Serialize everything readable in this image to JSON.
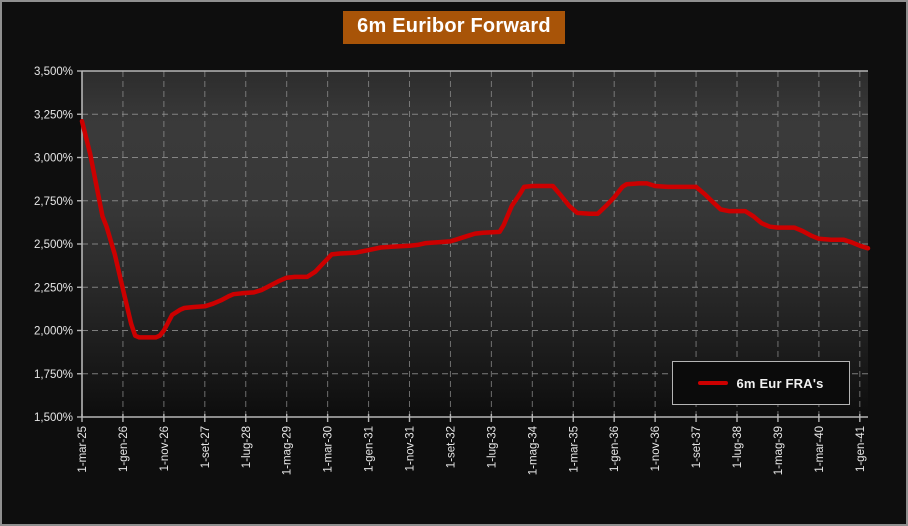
{
  "title": {
    "text": "6m Euribor Forward"
  },
  "legend": {
    "label": "6m Eur FRA's"
  },
  "colors": {
    "series": "#cc0000",
    "title_bg": "#a85408",
    "page_bg": "#0e0e0e",
    "grid": "#9d9d9d",
    "axis": "#b5b5b5",
    "tick_text": "#e6e6e6"
  },
  "chart_data": {
    "type": "line",
    "title": "6m Euribor Forward",
    "xlabel": "",
    "ylabel": "",
    "grid": true,
    "legend_position": "bottom-right",
    "x_unit": "months-from-first-tick",
    "xlim": [
      0,
      192
    ],
    "ylim": [
      1.5,
      3.5
    ],
    "y_ticks": [
      {
        "value": 3.5,
        "label": "3,500%"
      },
      {
        "value": 3.25,
        "label": "3,250%"
      },
      {
        "value": 3.0,
        "label": "3,000%"
      },
      {
        "value": 2.75,
        "label": "2,750%"
      },
      {
        "value": 2.5,
        "label": "2,500%"
      },
      {
        "value": 2.25,
        "label": "2,250%"
      },
      {
        "value": 2.0,
        "label": "2,000%"
      },
      {
        "value": 1.75,
        "label": "1,750%"
      },
      {
        "value": 1.5,
        "label": "1,500%"
      }
    ],
    "x_ticks": [
      {
        "month": 0,
        "label": "1-mar-25"
      },
      {
        "month": 10,
        "label": "1-gen-26"
      },
      {
        "month": 20,
        "label": "1-nov-26"
      },
      {
        "month": 30,
        "label": "1-set-27"
      },
      {
        "month": 40,
        "label": "1-lug-28"
      },
      {
        "month": 50,
        "label": "1-mag-29"
      },
      {
        "month": 60,
        "label": "1-mar-30"
      },
      {
        "month": 70,
        "label": "1-gen-31"
      },
      {
        "month": 80,
        "label": "1-nov-31"
      },
      {
        "month": 90,
        "label": "1-set-32"
      },
      {
        "month": 100,
        "label": "1-lug-33"
      },
      {
        "month": 110,
        "label": "1-mag-34"
      },
      {
        "month": 120,
        "label": "1-mar-35"
      },
      {
        "month": 130,
        "label": "1-gen-36"
      },
      {
        "month": 140,
        "label": "1-nov-36"
      },
      {
        "month": 150,
        "label": "1-set-37"
      },
      {
        "month": 160,
        "label": "1-lug-38"
      },
      {
        "month": 170,
        "label": "1-mag-39"
      },
      {
        "month": 180,
        "label": "1-mar-40"
      },
      {
        "month": 190,
        "label": "1-gen-41"
      }
    ],
    "series": [
      {
        "name": "6m Eur FRA's",
        "color": "#cc0000",
        "points": [
          [
            0,
            3.21
          ],
          [
            2,
            3.02
          ],
          [
            4,
            2.78
          ],
          [
            5,
            2.66
          ],
          [
            6,
            2.6
          ],
          [
            8,
            2.44
          ],
          [
            10,
            2.24
          ],
          [
            12,
            2.04
          ],
          [
            13,
            1.97
          ],
          [
            14,
            1.96
          ],
          [
            16,
            1.96
          ],
          [
            18,
            1.96
          ],
          [
            19,
            1.97
          ],
          [
            20,
            2.0
          ],
          [
            22,
            2.09
          ],
          [
            24,
            2.12
          ],
          [
            25,
            2.13
          ],
          [
            27,
            2.135
          ],
          [
            30,
            2.14
          ],
          [
            32,
            2.155
          ],
          [
            34,
            2.175
          ],
          [
            36,
            2.2
          ],
          [
            37,
            2.21
          ],
          [
            39,
            2.215
          ],
          [
            42,
            2.22
          ],
          [
            44,
            2.235
          ],
          [
            46,
            2.26
          ],
          [
            48,
            2.285
          ],
          [
            50,
            2.305
          ],
          [
            52,
            2.31
          ],
          [
            55,
            2.31
          ],
          [
            57,
            2.34
          ],
          [
            59,
            2.39
          ],
          [
            61,
            2.44
          ],
          [
            63,
            2.445
          ],
          [
            67,
            2.45
          ],
          [
            70,
            2.465
          ],
          [
            73,
            2.48
          ],
          [
            76,
            2.485
          ],
          [
            80,
            2.49
          ],
          [
            82,
            2.495
          ],
          [
            84,
            2.505
          ],
          [
            87,
            2.51
          ],
          [
            90,
            2.515
          ],
          [
            92,
            2.53
          ],
          [
            94,
            2.545
          ],
          [
            96,
            2.56
          ],
          [
            98,
            2.565
          ],
          [
            102,
            2.57
          ],
          [
            103,
            2.61
          ],
          [
            105,
            2.72
          ],
          [
            107,
            2.79
          ],
          [
            108,
            2.83
          ],
          [
            110,
            2.835
          ],
          [
            115,
            2.835
          ],
          [
            117,
            2.78
          ],
          [
            119,
            2.72
          ],
          [
            121,
            2.68
          ],
          [
            124,
            2.675
          ],
          [
            126,
            2.675
          ],
          [
            128,
            2.72
          ],
          [
            130,
            2.77
          ],
          [
            132,
            2.83
          ],
          [
            133,
            2.845
          ],
          [
            136,
            2.85
          ],
          [
            138,
            2.85
          ],
          [
            140,
            2.835
          ],
          [
            143,
            2.83
          ],
          [
            147,
            2.83
          ],
          [
            150,
            2.83
          ],
          [
            152,
            2.79
          ],
          [
            154,
            2.745
          ],
          [
            156,
            2.7
          ],
          [
            158,
            2.69
          ],
          [
            162,
            2.69
          ],
          [
            164,
            2.66
          ],
          [
            166,
            2.62
          ],
          [
            168,
            2.6
          ],
          [
            170,
            2.595
          ],
          [
            174,
            2.595
          ],
          [
            176,
            2.575
          ],
          [
            178,
            2.55
          ],
          [
            180,
            2.53
          ],
          [
            183,
            2.525
          ],
          [
            186,
            2.525
          ],
          [
            188,
            2.51
          ],
          [
            190,
            2.49
          ],
          [
            192,
            2.475
          ]
        ]
      }
    ]
  }
}
